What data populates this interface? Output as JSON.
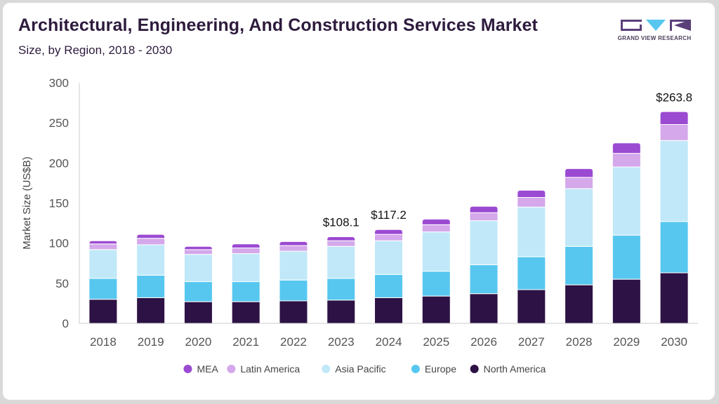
{
  "title": "Architectural, Engineering, And Construction Services Market",
  "subtitle": "Size, by Region, 2018 - 2030",
  "logo": {
    "text": "GRAND VIEW RESEARCH"
  },
  "colors": {
    "North America": "#2d1245",
    "Europe": "#57c7ef",
    "Asia Pacific": "#c0e8f8",
    "Latin America": "#d4a8ea",
    "MEA": "#9b4ad2"
  },
  "chart_data": {
    "type": "bar",
    "stacked": true,
    "title": "Architectural, Engineering, And Construction Services Market",
    "subtitle": "Size, by Region, 2018 - 2030",
    "xlabel": "",
    "ylabel": "Market Size (US$B)",
    "ylim": [
      0,
      300
    ],
    "yticks": [
      0,
      50,
      100,
      150,
      200,
      250,
      300
    ],
    "categories": [
      "2018",
      "2019",
      "2020",
      "2021",
      "2022",
      "2023",
      "2024",
      "2025",
      "2026",
      "2027",
      "2028",
      "2029",
      "2030"
    ],
    "series": [
      {
        "name": "North America",
        "values": [
          30,
          32,
          27,
          27,
          28,
          29,
          32,
          34,
          37,
          42,
          48,
          55,
          63
        ]
      },
      {
        "name": "Europe",
        "values": [
          26,
          28,
          25,
          25,
          26,
          27,
          29,
          31,
          36,
          41,
          48,
          55,
          64
        ]
      },
      {
        "name": "Asia Pacific",
        "values": [
          36,
          38,
          34,
          35,
          36,
          40,
          42,
          49,
          55,
          62,
          72,
          85,
          101
        ]
      },
      {
        "name": "Latin America",
        "values": [
          7,
          8,
          6,
          7,
          7,
          7,
          8,
          9,
          10,
          12,
          14,
          17,
          20
        ]
      },
      {
        "name": "MEA",
        "values": [
          4,
          5,
          4,
          5,
          5,
          5,
          6,
          7,
          8,
          9,
          11,
          13,
          16
        ]
      }
    ],
    "legend_order": [
      "MEA",
      "Latin America",
      "Asia Pacific",
      "Europe",
      "North America"
    ],
    "legend_position": "bottom",
    "annotations": [
      {
        "category": "2023",
        "label": "$108.1",
        "value": 108.1
      },
      {
        "category": "2024",
        "label": "$117.2",
        "value": 117.2
      },
      {
        "category": "2030",
        "label": "$263.8",
        "value": 263.8
      }
    ]
  }
}
